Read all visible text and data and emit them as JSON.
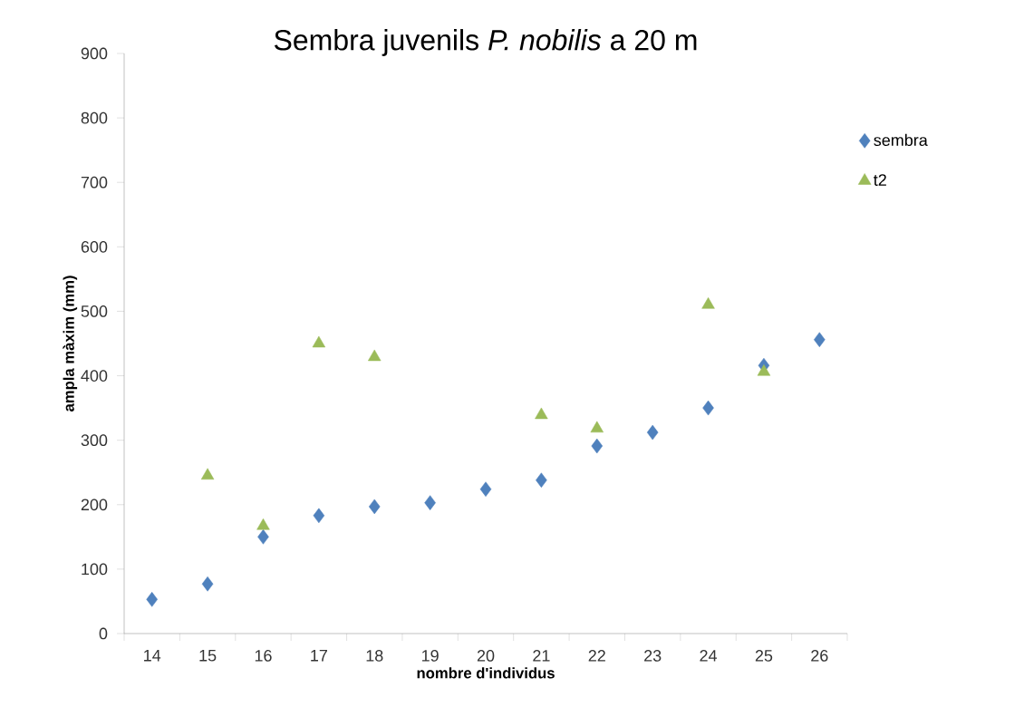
{
  "chart_data": {
    "type": "scatter",
    "title": "Sembra juvenils *P. nobilis* a 20 m",
    "xlabel": "nombre d'individus",
    "ylabel": "ampla màxim (mm)",
    "categories": [
      "14",
      "15",
      "16",
      "17",
      "18",
      "19",
      "20",
      "21",
      "22",
      "23",
      "24",
      "25",
      "26"
    ],
    "series": [
      {
        "name": "sembra",
        "color": "#4f81bd",
        "marker": "diamond",
        "values": [
          53,
          77,
          150,
          183,
          197,
          203,
          224,
          238,
          291,
          312,
          350,
          416,
          456
        ]
      },
      {
        "name": "t2",
        "color": "#9bbb59",
        "marker": "triangle",
        "values": [
          null,
          245,
          167,
          450,
          429,
          null,
          null,
          339,
          318,
          null,
          510,
          406,
          null
        ]
      }
    ],
    "ylim": [
      0,
      900
    ],
    "yticks": [
      0,
      100,
      200,
      300,
      400,
      500,
      600,
      700,
      800,
      900
    ],
    "legend": "right"
  }
}
